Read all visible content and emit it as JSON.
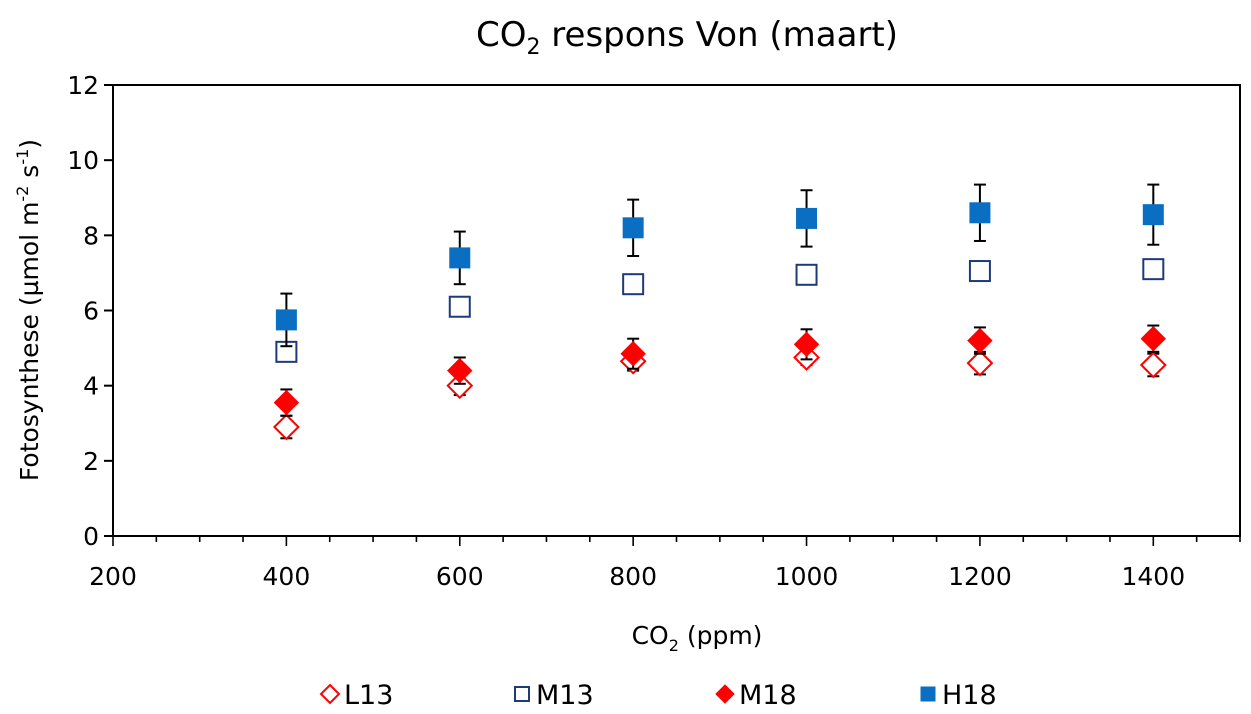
{
  "chart_data": {
    "type": "scatter",
    "title": {
      "main": "CO",
      "sub": "2",
      "rest": " respons Von (maart)"
    },
    "xlabel": {
      "main": "CO",
      "sub": "2",
      "rest": " (ppm)"
    },
    "ylabel": {
      "a": "Fotosynthese (µmol m",
      "sup1": "-2",
      "b": " s",
      "sup2": "-1",
      "c": ")"
    },
    "xlim": [
      200,
      1500
    ],
    "ylim": [
      0,
      12
    ],
    "xticks": [
      200,
      400,
      600,
      800,
      1000,
      1200,
      1400
    ],
    "yticks": [
      0,
      2,
      4,
      6,
      8,
      10,
      12
    ],
    "x_minor_step": 50,
    "grid": false,
    "legend_position": "bottom",
    "x": [
      400,
      600,
      800,
      1000,
      1200,
      1400
    ],
    "series": [
      {
        "name": "L13",
        "marker": "diamond-open",
        "color": "#ff0000",
        "values": [
          2.9,
          4.0,
          4.65,
          4.75,
          4.6,
          4.55
        ],
        "error": [
          0.3,
          0.25,
          0.25,
          0.2,
          0.3,
          0.3
        ]
      },
      {
        "name": "M13",
        "marker": "square-open",
        "color": "#1f3a7a",
        "values": [
          4.9,
          6.1,
          6.7,
          6.95,
          7.05,
          7.1
        ],
        "error": null
      },
      {
        "name": "M18",
        "marker": "diamond-filled",
        "color": "#ff0000",
        "values": [
          3.55,
          4.4,
          4.85,
          5.1,
          5.2,
          5.25
        ],
        "error": [
          0.35,
          0.35,
          0.4,
          0.4,
          0.35,
          0.35
        ]
      },
      {
        "name": "H18",
        "marker": "square-filled",
        "color": "#0a6fc2",
        "values": [
          5.75,
          7.4,
          8.2,
          8.45,
          8.6,
          8.55
        ],
        "error": [
          0.7,
          0.7,
          0.75,
          0.75,
          0.75,
          0.8
        ]
      }
    ]
  }
}
